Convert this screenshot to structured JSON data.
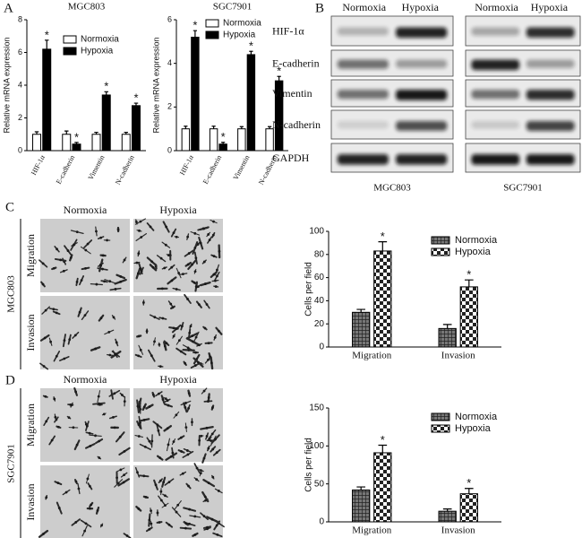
{
  "panel_labels": [
    "A",
    "B",
    "C",
    "D"
  ],
  "chart_data": [
    {
      "type": "bar",
      "title": "MGC803",
      "y_label": "Relative mRNA expression",
      "categories": [
        "HIF-1α",
        "E-cadherin",
        "Vimentin",
        "N-cadherin"
      ],
      "series": [
        {
          "name": "Normoxia",
          "color": "#ffffff",
          "values": [
            1,
            1,
            1,
            1
          ],
          "errors": [
            0.15,
            0.2,
            0.12,
            0.12
          ]
        },
        {
          "name": "Hypoxia",
          "color": "#000000",
          "values": [
            6.2,
            0.4,
            3.4,
            2.75
          ],
          "errors": [
            0.55,
            0.1,
            0.2,
            0.15
          ],
          "annotation": "*"
        }
      ],
      "ylim": [
        0,
        8
      ],
      "yticks": [
        0,
        2,
        4,
        6,
        8
      ],
      "legend": "upper right"
    },
    {
      "type": "bar",
      "title": "SGC7901",
      "y_label": "Relative mRNA expression",
      "categories": [
        "HIF-1α",
        "E-cadherin",
        "Vimentin",
        "N-cadherin"
      ],
      "series": [
        {
          "name": "Normoxia",
          "color": "#ffffff",
          "values": [
            1,
            1,
            1,
            1
          ],
          "errors": [
            0.12,
            0.12,
            0.1,
            0.1
          ]
        },
        {
          "name": "Hypoxia",
          "color": "#000000",
          "values": [
            5.2,
            0.3,
            4.4,
            3.2
          ],
          "errors": [
            0.3,
            0.08,
            0.15,
            0.2
          ],
          "annotation": "*"
        }
      ],
      "ylim": [
        0,
        6
      ],
      "yticks": [
        0,
        2,
        4,
        6
      ],
      "legend": "upper right"
    },
    {
      "type": "bar",
      "y_label": "Cells per field",
      "pattern": true,
      "categories": [
        "Migration",
        "Invasion"
      ],
      "series": [
        {
          "name": "Normoxia",
          "color": "#222222",
          "values": [
            30,
            16
          ],
          "errors": [
            2.5,
            3.5
          ]
        },
        {
          "name": "Hypoxia",
          "color": "#222222",
          "values": [
            83,
            52
          ],
          "errors": [
            8,
            6
          ],
          "annotation": "*"
        }
      ],
      "ylim": [
        0,
        100
      ],
      "yticks": [
        0,
        20,
        40,
        60,
        80,
        100
      ],
      "legend": "upper right"
    },
    {
      "type": "bar",
      "y_label": "Cells per field",
      "pattern": true,
      "categories": [
        "Migration",
        "Invasion"
      ],
      "series": [
        {
          "name": "Normoxia",
          "color": "#222222",
          "values": [
            42,
            14
          ],
          "errors": [
            4,
            3
          ]
        },
        {
          "name": "Hypoxia",
          "color": "#222222",
          "values": [
            91,
            37
          ],
          "errors": [
            10,
            7
          ],
          "annotation": "*"
        }
      ],
      "ylim": [
        0,
        150
      ],
      "yticks": [
        0,
        50,
        100,
        150
      ],
      "legend": "upper right"
    }
  ],
  "western_blot": {
    "columns": [
      "Normoxia",
      "Hypoxia"
    ],
    "proteins": [
      "HIF-1α",
      "E-cadherin",
      "Vimentin",
      "N-cadherin",
      "GAPDH"
    ],
    "cell_lines": [
      "MGC803",
      "SGC7901"
    ]
  },
  "micrographs": [
    {
      "cell_line": "MGC803",
      "columns": [
        "Normoxia",
        "Hypoxia"
      ],
      "rows": [
        "Migration",
        "Invasion"
      ]
    },
    {
      "cell_line": "SGC7901",
      "columns": [
        "Normoxia",
        "Hypoxia"
      ],
      "rows": [
        "Migration",
        "Invasion"
      ]
    }
  ]
}
